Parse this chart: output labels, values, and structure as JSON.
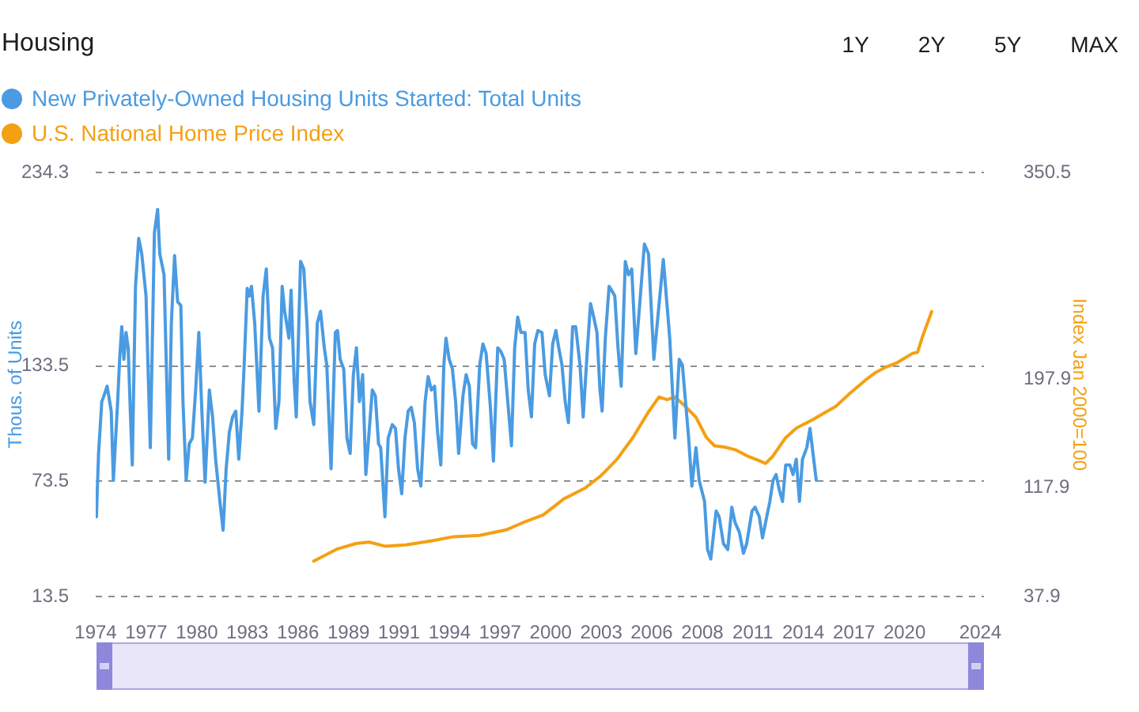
{
  "chart_data": {
    "type": "line",
    "title": "Housing",
    "ylabel": "Thous. of Units",
    "y2label": "Index Jan 2000=100",
    "annotations": [
      "1Y",
      "2Y",
      "5Y",
      "MAX"
    ],
    "xlim": [
      1974.42,
      2024.2
    ],
    "xticks": [
      {
        "value": 1974.42,
        "label": "1974"
      },
      {
        "value": 1977.25,
        "label": "1977"
      },
      {
        "value": 1980.09,
        "label": "1980"
      },
      {
        "value": 1982.92,
        "label": "1983"
      },
      {
        "value": 1985.75,
        "label": "1986"
      },
      {
        "value": 1988.59,
        "label": "1989"
      },
      {
        "value": 1991.42,
        "label": "1991"
      },
      {
        "value": 1994.25,
        "label": "1994"
      },
      {
        "value": 1997.08,
        "label": "1997"
      },
      {
        "value": 1999.92,
        "label": "2000"
      },
      {
        "value": 2002.75,
        "label": "2003"
      },
      {
        "value": 2005.58,
        "label": "2006"
      },
      {
        "value": 2008.42,
        "label": "2008"
      },
      {
        "value": 2011.25,
        "label": "2011"
      },
      {
        "value": 2014.08,
        "label": "2014"
      },
      {
        "value": 2016.92,
        "label": "2017"
      },
      {
        "value": 2019.75,
        "label": "2020"
      },
      2024
    ],
    "ylim": [
      13.5,
      234.3
    ],
    "yticks": [
      13.5,
      73.5,
      133.5,
      234.3
    ],
    "y2lim": [
      37.9,
      350.5
    ],
    "y2ticks": [
      37.9,
      117.9,
      197.9,
      350.5
    ],
    "grid": "y",
    "legend": "top left",
    "marker": "none",
    "line_style": "solid",
    "series": [
      {
        "name": "New Privately-Owned Housing Units Started: Total Units",
        "color": "#4a9be2",
        "x": [
          1974.46,
          1974.58,
          1974.76,
          1974.88,
          1975.06,
          1975.29,
          1975.41,
          1975.65,
          1975.76,
          1975.88,
          1976.0,
          1976.12,
          1976.24,
          1976.36,
          1976.47,
          1976.65,
          1976.83,
          1977.0,
          1977.24,
          1977.48,
          1977.71,
          1977.89,
          1978.01,
          1978.25,
          1978.51,
          1978.66,
          1978.84,
          1979.01,
          1979.19,
          1979.31,
          1979.49,
          1979.66,
          1979.84,
          1980.02,
          1980.2,
          1980.37,
          1980.55,
          1980.79,
          1980.97,
          1981.14,
          1981.38,
          1981.56,
          1981.73,
          1981.91,
          1982.09,
          1982.27,
          1982.44,
          1982.62,
          1982.74,
          1982.91,
          1983.03,
          1983.15,
          1983.33,
          1983.57,
          1983.8,
          1983.98,
          1984.16,
          1984.33,
          1984.51,
          1984.69,
          1984.87,
          1985.01,
          1985.25,
          1985.37,
          1985.54,
          1985.66,
          1985.9,
          1986.08,
          1986.26,
          1986.43,
          1986.64,
          1986.84,
          1987.02,
          1987.23,
          1987.37,
          1987.61,
          1987.85,
          1987.97,
          1988.12,
          1988.32,
          1988.5,
          1988.68,
          1988.86,
          1989.03,
          1989.2,
          1989.38,
          1989.56,
          1989.74,
          1989.92,
          1990.09,
          1990.27,
          1990.39,
          1990.63,
          1990.81,
          1991.04,
          1991.22,
          1991.39,
          1991.57,
          1991.75,
          1991.93,
          1992.1,
          1992.28,
          1992.46,
          1992.64,
          1992.88,
          1993.05,
          1993.23,
          1993.41,
          1993.58,
          1993.76,
          1993.93,
          1994.05,
          1994.23,
          1994.41,
          1994.59,
          1994.76,
          1995.0,
          1995.18,
          1995.36,
          1995.54,
          1995.71,
          1995.94,
          1996.12,
          1996.3,
          1996.54,
          1996.71,
          1996.95,
          1997.13,
          1997.31,
          1997.54,
          1997.72,
          1997.9,
          1998.07,
          1998.25,
          1998.48,
          1998.66,
          1998.84,
          1999.02,
          1999.2,
          1999.43,
          1999.61,
          1999.85,
          2000.03,
          2000.21,
          2000.37,
          2000.55,
          2000.73,
          2000.91,
          2001.15,
          2001.32,
          2001.56,
          2001.74,
          2001.98,
          2002.15,
          2002.33,
          2002.51,
          2002.68,
          2002.8,
          2002.98,
          2003.19,
          2003.33,
          2003.51,
          2003.69,
          2003.87,
          2004.1,
          2004.28,
          2004.46,
          2004.69,
          2005.17,
          2005.4,
          2005.7,
          2006.23,
          2006.59,
          2006.88,
          2007.12,
          2007.3,
          2007.65,
          2007.83,
          2008.06,
          2008.24,
          2008.54,
          2008.71,
          2008.89,
          2009.19,
          2009.36,
          2009.6,
          2009.84,
          2010.07,
          2010.25,
          2010.49,
          2010.72,
          2010.9,
          2011.2,
          2011.37,
          2011.61,
          2011.79,
          2011.96,
          2012.2,
          2012.38,
          2012.55,
          2012.73,
          2012.91,
          2013.09,
          2013.32,
          2013.5,
          2013.68,
          2013.86,
          2014.03,
          2014.27,
          2014.45,
          2014.62,
          2014.8
        ],
        "values": [
          55,
          88,
          115,
          118,
          123,
          110,
          74,
          115,
          137,
          154,
          137,
          151,
          143,
          110,
          82,
          175,
          200,
          192,
          170,
          91,
          203,
          215,
          192,
          181,
          85,
          156,
          191,
          167,
          165,
          115,
          74,
          93,
          96,
          121,
          151,
          110,
          73,
          121,
          107,
          85,
          63,
          48,
          80,
          99,
          107,
          110,
          85,
          110,
          134,
          174,
          170,
          175,
          156,
          110,
          170,
          184,
          148,
          143,
          101,
          115,
          175,
          162,
          148,
          173,
          126,
          107,
          188,
          184,
          156,
          115,
          103,
          156,
          162,
          143,
          134,
          80,
          151,
          152,
          137,
          132,
          96,
          88,
          129,
          143,
          115,
          129,
          77,
          99,
          121,
          118,
          93,
          91,
          55,
          96,
          103,
          101,
          80,
          67,
          96,
          110,
          112,
          104,
          80,
          71,
          115,
          128,
          121,
          123,
          99,
          82,
          134,
          148,
          137,
          132,
          115,
          88,
          118,
          129,
          123,
          93,
          91,
          134,
          145,
          140,
          112,
          84,
          143,
          141,
          137,
          112,
          92,
          143,
          159,
          151,
          151,
          121,
          107,
          145,
          152,
          151,
          129,
          118,
          145,
          152,
          143,
          134,
          115,
          104,
          154,
          154,
          134,
          107,
          143,
          166,
          159,
          151,
          121,
          110,
          148,
          175,
          173,
          170,
          143,
          123,
          188,
          181,
          184,
          140,
          197,
          192,
          137,
          189,
          148,
          96,
          137,
          134,
          96,
          71,
          91,
          74,
          63,
          38,
          33,
          58,
          55,
          41,
          38,
          60,
          52,
          47,
          36,
          41,
          58,
          60,
          55,
          44,
          52,
          63,
          74,
          77,
          69,
          63,
          82,
          82,
          77,
          85,
          63,
          85,
          91,
          101,
          88,
          74
        ]
      },
      {
        "name": "U.S. National Home Price Index",
        "color": "#f4a013",
        "axis": "y2",
        "x": [
          1986.64,
          1987.97,
          1989.01,
          1989.74,
          1990.63,
          1991.81,
          1993.29,
          1994.47,
          1995.94,
          1997.42,
          1998.3,
          1999.5,
          2000.67,
          2000.97,
          2001.86,
          2002.74,
          2003.63,
          2004.52,
          2005.4,
          2005.99,
          2006.44,
          2006.88,
          2007.47,
          2008.06,
          2008.65,
          2009.1,
          2009.69,
          2010.28,
          2011.02,
          2011.61,
          2011.96,
          2012.35,
          2013.09,
          2013.68,
          2014.56,
          2015.89,
          2016.63,
          2017.52,
          2018.12,
          2018.7,
          2019.29,
          2020.18,
          2020.48,
          2020.77,
          2021.27
        ],
        "values": [
          64,
          73,
          77,
          78,
          75,
          76,
          79,
          82,
          83,
          87,
          92,
          98,
          110,
          112,
          118,
          127,
          139,
          155,
          174,
          185,
          183,
          185,
          178,
          170,
          155,
          149,
          148,
          146,
          141,
          138,
          136,
          141,
          155,
          162,
          168,
          178,
          187,
          197,
          203,
          207,
          210,
          217,
          218,
          230,
          248
        ]
      }
    ]
  }
}
